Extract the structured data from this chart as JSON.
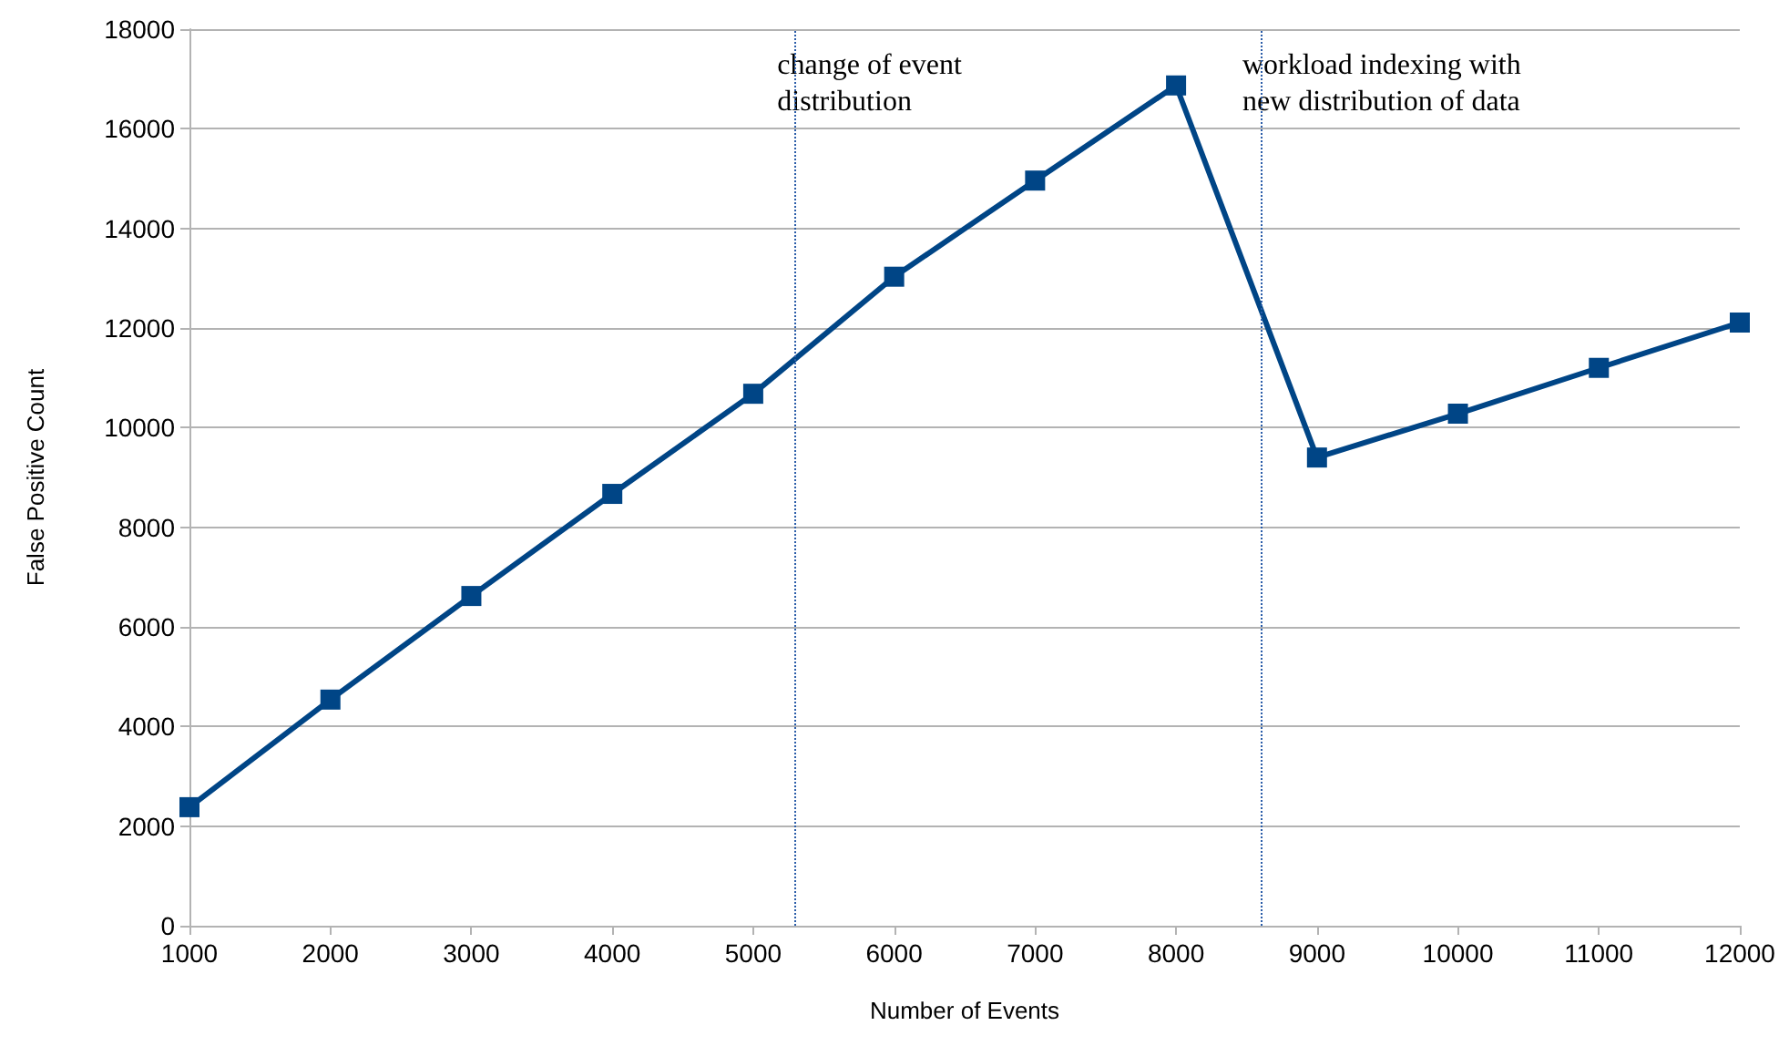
{
  "chart_data": {
    "type": "line",
    "xlabel": "Number of Events",
    "ylabel": "False Positive Count",
    "x": [
      1000,
      2000,
      3000,
      4000,
      5000,
      6000,
      7000,
      8000,
      9000,
      10000,
      11000,
      12000
    ],
    "series": [
      {
        "color": "#004586",
        "values": [
          2380,
          4540,
          6620,
          8670,
          10680,
          13030,
          14960,
          16870,
          9400,
          10280,
          11200,
          12110
        ]
      }
    ],
    "xlim": [
      1000,
      12000
    ],
    "xticks": [
      1000,
      2000,
      3000,
      4000,
      5000,
      6000,
      7000,
      8000,
      9000,
      10000,
      11000,
      12000
    ],
    "ylim": [
      0,
      18000
    ],
    "yticks": [
      0,
      2000,
      4000,
      6000,
      8000,
      10000,
      12000,
      14000,
      16000,
      18000
    ],
    "ref_lines": [
      {
        "axis": "x",
        "value": 5300,
        "label": "change of event\ndistribution",
        "color": "#2a5ca8",
        "line_style": "dotted"
      },
      {
        "axis": "x",
        "value": 8600,
        "label": "workload indexing with\nnew distribution of data",
        "color": "#2a5ca8",
        "line_style": "dotted"
      }
    ],
    "grid": "y",
    "marker": "square",
    "line_style": "solid"
  }
}
